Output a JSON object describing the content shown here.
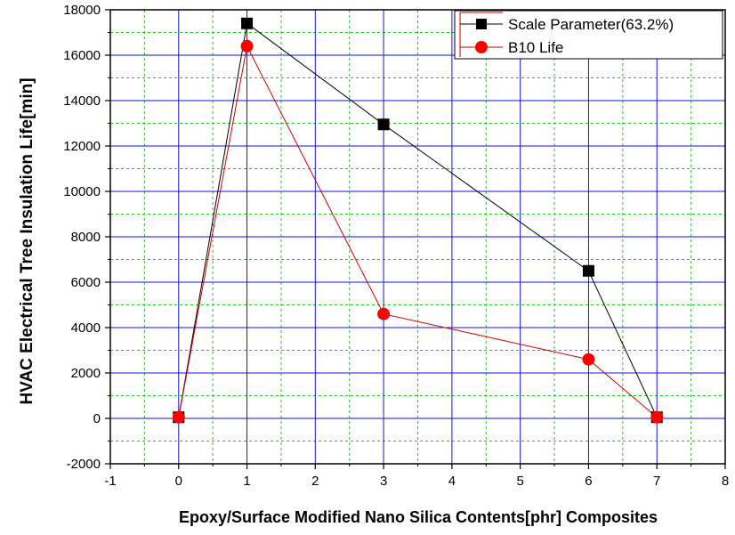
{
  "chart_data": {
    "type": "line",
    "title": "",
    "xlabel": "Epoxy/Surface Modified Nano Silica Contents[phr] Composites",
    "ylabel": "HVAC Electrical Tree Insulation Life[min]",
    "xlim": [
      -1,
      8
    ],
    "ylim": [
      -2000,
      18000
    ],
    "xticks": [
      -1,
      0,
      1,
      2,
      3,
      4,
      5,
      6,
      7,
      8
    ],
    "yticks": [
      -2000,
      0,
      2000,
      4000,
      6000,
      8000,
      10000,
      12000,
      14000,
      16000,
      18000
    ],
    "grid": "major blue solid, minor green dashed",
    "legend_position": "top-right",
    "series": [
      {
        "name": "Scale Parameter(63.2%)",
        "marker": "square",
        "marker_color": "#000000",
        "line_color": "#000000",
        "x": [
          0,
          1,
          3,
          6,
          7
        ],
        "y": [
          50,
          17400,
          12950,
          6500,
          50
        ]
      },
      {
        "name": "B10 Life",
        "marker": "circle",
        "marker_color": "#ff0000",
        "line_color": "#cc0000",
        "x": [
          0,
          1,
          3,
          6,
          7
        ],
        "y": [
          50,
          16400,
          4600,
          2600,
          50
        ]
      }
    ]
  }
}
